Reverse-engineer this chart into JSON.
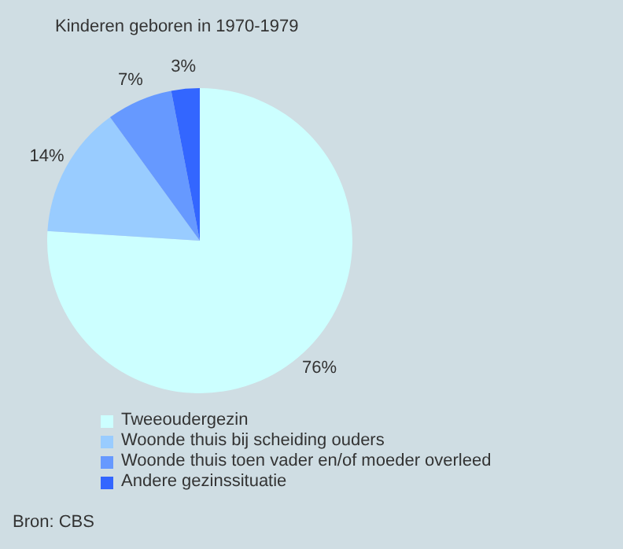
{
  "chart_data": {
    "type": "pie",
    "title": "Kinderen geboren in 1970-1979",
    "categories": [
      "Tweeoudergezin",
      "Woonde thuis bij scheiding ouders",
      "Woonde thuis toen vader en/of moeder overleed",
      "Andere gezinssituatie"
    ],
    "values": [
      76,
      14,
      7,
      3
    ],
    "colors": [
      "#ccffff",
      "#99ccff",
      "#6699ff",
      "#3366ff"
    ],
    "value_labels": [
      "76%",
      "14%",
      "7%",
      "3%"
    ],
    "legend": "bottom",
    "annotations": [
      "Bron: CBS"
    ]
  }
}
